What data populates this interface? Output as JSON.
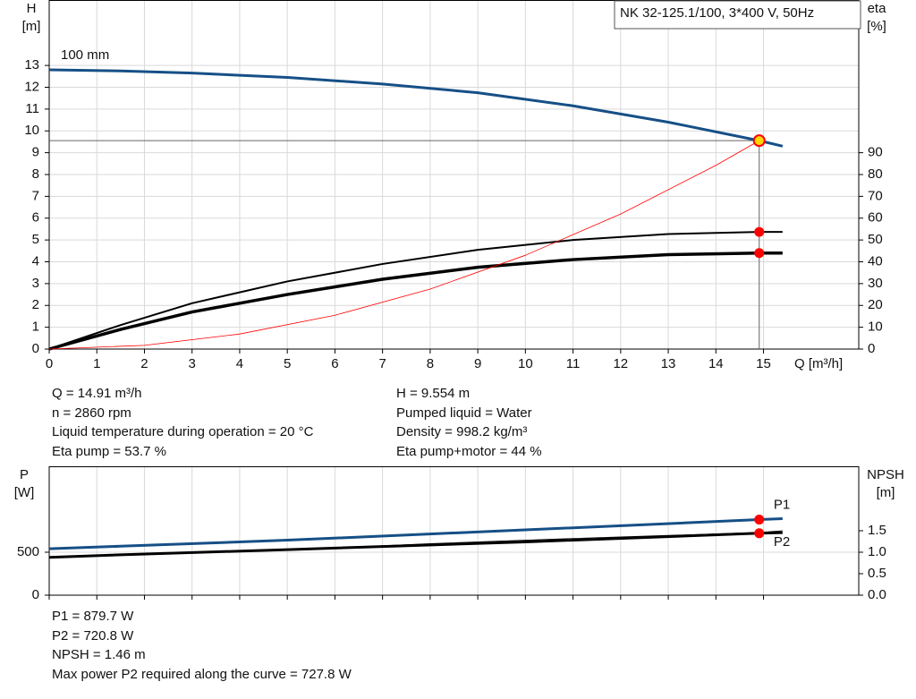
{
  "chart_data": [
    {
      "type": "line",
      "legend_title": "NK 32-125.1/100, 3*400 V, 50Hz",
      "annotation": "100 mm",
      "y_label": "H",
      "y_unit": "[m]",
      "y2_label": "eta",
      "y2_unit": "[%]",
      "x_label": "Q [m³/h]",
      "xlim": [
        0,
        17
      ],
      "xticks": [
        0,
        1,
        2,
        3,
        4,
        5,
        6,
        7,
        8,
        9,
        10,
        11,
        12,
        13,
        14,
        15
      ],
      "ylim": [
        0,
        16
      ],
      "yticks": [
        0,
        1,
        2,
        3,
        4,
        5,
        6,
        7,
        8,
        9,
        10,
        11,
        12,
        13
      ],
      "y2lim": [
        0,
        160
      ],
      "y2ticks": [
        0,
        10,
        20,
        30,
        40,
        50,
        60,
        70,
        80,
        90
      ],
      "grid": true,
      "crosshair": true,
      "series": [
        {
          "color": "#164f86",
          "width": 3,
          "x": [
            0,
            1.5,
            3,
            5,
            7,
            9,
            11,
            13,
            14.91,
            15.4
          ],
          "values": [
            12.8,
            12.75,
            12.65,
            12.45,
            12.15,
            11.75,
            11.15,
            10.4,
            9.554,
            9.3
          ]
        },
        {
          "color": "#000000",
          "width": 2,
          "axis": "y2",
          "x": [
            0,
            1.5,
            3,
            5,
            7,
            9,
            11,
            13,
            14.91,
            15.4
          ],
          "values": [
            0,
            11,
            21,
            31,
            39,
            45.5,
            50,
            52.7,
            53.7,
            53.7
          ]
        },
        {
          "color": "#000000",
          "width": 3.5,
          "axis": "y2",
          "x": [
            0,
            1.5,
            3,
            5,
            7,
            9,
            11,
            13,
            14.91,
            15.4
          ],
          "values": [
            0,
            9,
            17,
            25,
            32,
            37.5,
            41,
            43.3,
            44,
            44
          ]
        },
        {
          "color": "#ff0000",
          "width": 0.8,
          "x": [
            0,
            2,
            4,
            6,
            8,
            10,
            12,
            14,
            14.91
          ],
          "values": [
            0,
            0.17,
            0.69,
            1.55,
            2.75,
            4.3,
            6.19,
            8.42,
            9.554
          ]
        }
      ],
      "markers": [
        {
          "x": 14.91,
          "y": 9.554,
          "color": "#ffd700",
          "stroke": "#ff0000"
        },
        {
          "x": 14.91,
          "y": 53.7,
          "axis": "y2",
          "color": "#ff0000"
        },
        {
          "x": 14.91,
          "y": 44,
          "axis": "y2",
          "color": "#ff0000"
        }
      ]
    },
    {
      "type": "line",
      "y_label": "P",
      "y_unit": "[W]",
      "y2_label": "NPSH",
      "y2_unit": "[m]",
      "xlim": [
        0,
        17
      ],
      "xticks": [
        0,
        1,
        2,
        3,
        4,
        5,
        6,
        7,
        8,
        9,
        10,
        11,
        12,
        13,
        14,
        15
      ],
      "xtick_labels": false,
      "ylim": [
        0,
        1500
      ],
      "yticks": [
        0,
        500
      ],
      "y2lim": [
        0,
        3
      ],
      "y2ticks": [
        {
          "value": 0,
          "label": "0.0"
        },
        0.5,
        {
          "value": 1,
          "label": "1.0"
        },
        1.5
      ],
      "grid": true,
      "series": [
        {
          "name": "P1",
          "color": "#164f86",
          "width": 3,
          "label_pos": "above",
          "x": [
            0,
            1.5,
            5,
            10,
            14.91,
            15.4
          ],
          "values": [
            540,
            570,
            640,
            760,
            879.7,
            890
          ]
        },
        {
          "color": "#000000",
          "width": 0.8,
          "axis": "y2",
          "x": [
            1.5,
            5,
            8,
            11,
            14.91,
            15.4
          ],
          "values": [
            0.94,
            1.05,
            1.2,
            1.32,
            1.46,
            1.5
          ]
        },
        {
          "name": "P2",
          "color": "#000000",
          "width": 3,
          "label_pos": "below",
          "x": [
            0,
            1.5,
            5,
            10,
            14.91,
            15.4
          ],
          "values": [
            440,
            470,
            530,
            620,
            720.8,
            727.8
          ]
        }
      ],
      "markers": [
        {
          "x": 14.91,
          "y": 879.7,
          "color": "#ff0000"
        },
        {
          "x": 14.91,
          "y": 720.8,
          "color": "#ff0000"
        }
      ]
    }
  ],
  "operating_info": {
    "left": [
      "Q = 14.91 m³/h",
      "n = 2860 rpm",
      "Liquid temperature during operation = 20 °C",
      "Eta pump = 53.7 %"
    ],
    "right": [
      "H = 9.554 m",
      "Pumped liquid = Water",
      "Density = 998.2 kg/m³",
      "Eta pump+motor = 44 %"
    ]
  },
  "power_info": [
    "P1 = 879.7 W",
    "P2 = 720.8 W",
    "NPSH = 1.46 m",
    "Max power P2 required along the curve = 727.8 W"
  ]
}
